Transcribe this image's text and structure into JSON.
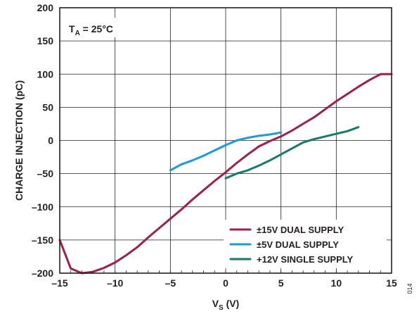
{
  "chart_data": {
    "type": "line",
    "xlabel_main": "V",
    "xlabel_sub": "S",
    "xlabel_unit": " (V)",
    "ylabel": "CHARGE INJECTION (pC)",
    "xlim": [
      -15,
      15
    ],
    "ylim": [
      -200,
      200
    ],
    "x_ticks": [
      -15,
      -10,
      -5,
      0,
      5,
      10,
      15
    ],
    "y_ticks": [
      -200,
      -150,
      -100,
      -50,
      0,
      50,
      100,
      150,
      200
    ],
    "x_tick_labels": [
      "–15",
      "–10",
      "–5",
      "0",
      "5",
      "10",
      "15"
    ],
    "y_tick_labels": [
      "–200",
      "–150",
      "–100",
      "–50",
      "0",
      "50",
      "100",
      "150",
      "200"
    ],
    "x_minor_step": 1,
    "grid": true,
    "annotation": {
      "main": "T",
      "sub": "A",
      "rest": " = 25°C"
    },
    "legend_position": "bottom-right",
    "series": [
      {
        "name": "±15V DUAL SUPPLY",
        "color": "#9e1f4f",
        "x": [
          -15,
          -14,
          -13,
          -12,
          -11,
          -10,
          -9,
          -8,
          -7,
          -6,
          -5,
          -4,
          -3,
          -2,
          -1,
          0,
          1,
          2,
          3,
          4,
          5,
          6,
          7,
          8,
          9,
          10,
          11,
          12,
          13,
          14,
          15
        ],
        "y": [
          -150,
          -193,
          -200,
          -198,
          -192,
          -184,
          -173,
          -161,
          -146,
          -132,
          -118,
          -104,
          -89,
          -75,
          -61,
          -48,
          -34,
          -21,
          -9,
          -1,
          6,
          15,
          25,
          35,
          47,
          59,
          70,
          81,
          91,
          100,
          100
        ]
      },
      {
        "name": "±5V DUAL SUPPLY",
        "color": "#1b9cd8",
        "x": [
          -5,
          -4,
          -3,
          -2,
          -1,
          0,
          1,
          2,
          3,
          4,
          5
        ],
        "y": [
          -45,
          -36,
          -30,
          -23,
          -15,
          -7,
          0,
          4,
          7,
          9,
          12
        ]
      },
      {
        "name": "+12V SINGLE SUPPLY",
        "color": "#167a6e",
        "x": [
          0,
          1,
          2,
          3,
          4,
          5,
          6,
          7,
          8,
          9,
          10,
          11,
          12
        ],
        "y": [
          -57,
          -50,
          -45,
          -38,
          -30,
          -21,
          -12,
          -3,
          2,
          6,
          10,
          14,
          20
        ]
      }
    ]
  },
  "figure_id": "014"
}
